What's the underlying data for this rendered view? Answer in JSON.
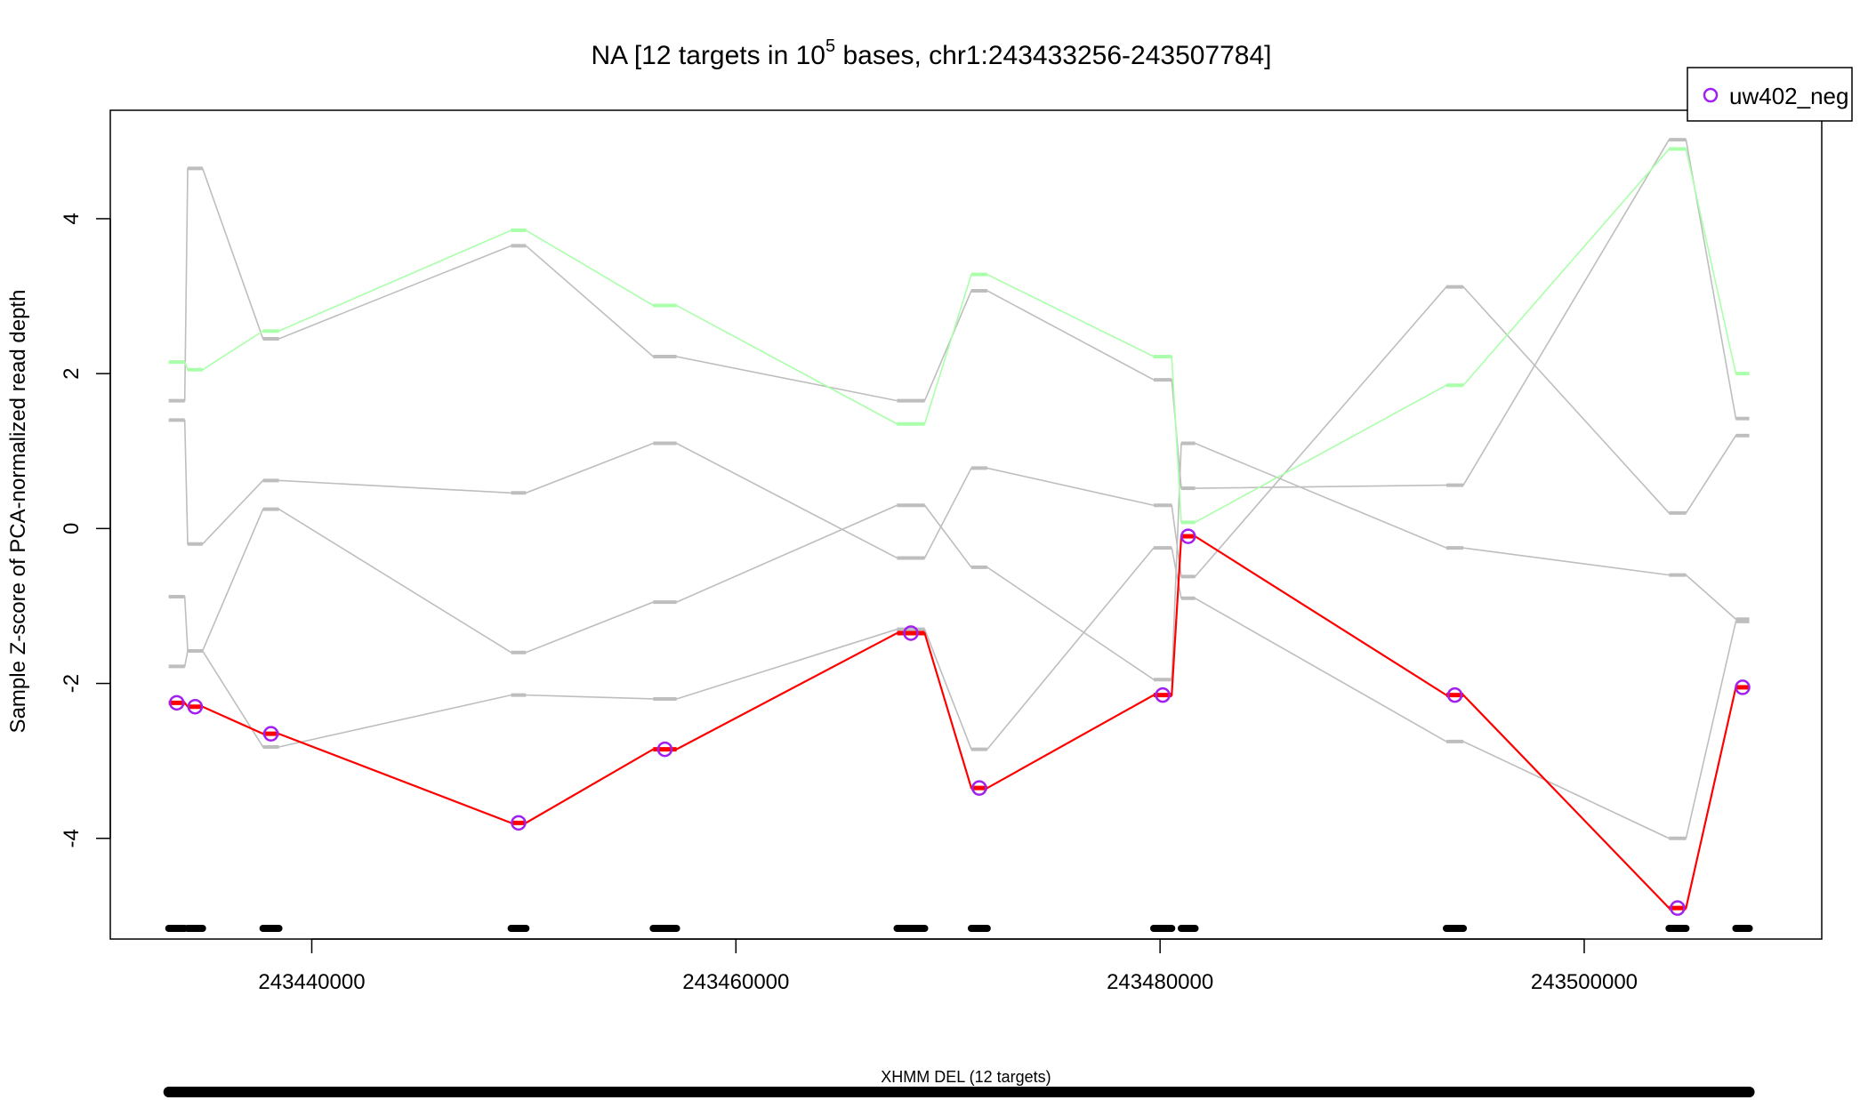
{
  "chart_data": {
    "type": "line",
    "title_prefix": "NA [12 targets in 10",
    "title_sup": "5",
    "title_suffix": " bases, chr1:243433256-243507784]",
    "ylabel": "Sample Z-score of PCA-normalized read depth",
    "xlabel": "",
    "xlim": [
      243430500,
      243511200
    ],
    "ylim": [
      -5.3,
      5.4
    ],
    "x_ticks": [
      243440000,
      243460000,
      243480000,
      243500000
    ],
    "x_tick_labels": [
      "243440000",
      "243460000",
      "243480000",
      "243500000"
    ],
    "y_ticks": [
      4,
      2,
      0,
      -2,
      -4
    ],
    "y_tick_labels": [
      "4",
      "2",
      "0",
      "-2",
      "-4"
    ],
    "grid": false,
    "legend": {
      "position": "top-right",
      "entries": [
        "uw402_neg"
      ]
    },
    "colors": {
      "highlight": "#ff0000",
      "marker": "#a020f0",
      "green": "#aaffaa",
      "gray": "#bebebe",
      "axis": "#000000"
    },
    "targets": [
      {
        "start": 243433256,
        "end": 243434010
      },
      {
        "start": 243434150,
        "end": 243434850
      },
      {
        "start": 243437700,
        "end": 243438450
      },
      {
        "start": 243449400,
        "end": 243450100
      },
      {
        "start": 243456100,
        "end": 243457200
      },
      {
        "start": 243467600,
        "end": 243468900
      },
      {
        "start": 243471100,
        "end": 243471850
      },
      {
        "start": 243479700,
        "end": 243480550
      },
      {
        "start": 243481000,
        "end": 243481650
      },
      {
        "start": 243493500,
        "end": 243494300
      },
      {
        "start": 243504000,
        "end": 243504800
      },
      {
        "start": 243507150,
        "end": 243507784
      }
    ],
    "x": [
      243433633,
      243434500,
      243438075,
      243449750,
      243456650,
      243468250,
      243471475,
      243480125,
      243481325,
      243493900,
      243504400,
      243507467
    ],
    "series": [
      {
        "role": "highlight",
        "values": [
          -2.25,
          -2.3,
          -2.65,
          -3.8,
          -2.85,
          -1.35,
          -3.35,
          -2.15,
          -0.1,
          -2.15,
          -4.9,
          -2.05
        ]
      },
      {
        "role": "green",
        "values": [
          2.15,
          2.05,
          2.55,
          3.85,
          2.88,
          1.35,
          3.28,
          2.22,
          0.08,
          1.85,
          4.9,
          2.0
        ]
      },
      {
        "role": "gray",
        "values": [
          1.65,
          4.65,
          2.45,
          3.65,
          2.22,
          1.65,
          3.07,
          1.92,
          0.52,
          0.56,
          5.02,
          1.42
        ]
      },
      {
        "role": "gray",
        "values": [
          1.4,
          -0.2,
          0.62,
          0.46,
          1.1,
          -0.38,
          0.78,
          0.3,
          -0.62,
          3.12,
          0.2,
          1.2
        ]
      },
      {
        "role": "gray",
        "values": [
          -0.88,
          -1.58,
          0.25,
          -1.6,
          -0.95,
          0.3,
          -0.5,
          -1.95,
          1.1,
          -0.25,
          -0.6,
          -1.17
        ]
      },
      {
        "role": "gray",
        "values": [
          -1.78,
          -1.58,
          -2.82,
          -2.15,
          -2.2,
          -1.3,
          -2.85,
          -0.25,
          -0.9,
          -2.75,
          -4.0,
          -1.2
        ]
      }
    ],
    "cnv_segment": {
      "label": "XHMM DEL (12 targets)",
      "start": 243433256,
      "end": 243507784
    }
  }
}
